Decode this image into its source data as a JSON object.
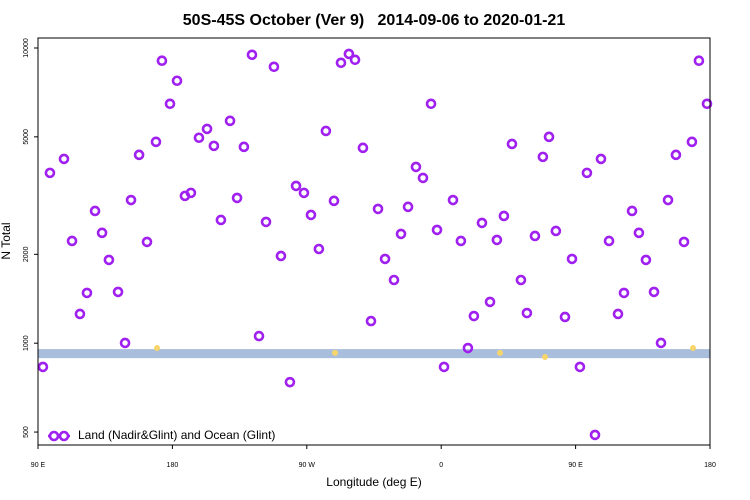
{
  "chart_data": {
    "type": "scatter",
    "title": "50S-45S October (Ver 9)   2014-09-06 to 2020-01-21",
    "x_label": "Longitude (deg E)",
    "y_label": "N Total",
    "log_y": true,
    "legend": "lower left",
    "xlim": [
      90,
      540
    ],
    "xticks": [
      {
        "value": 90,
        "label": "90 E"
      },
      {
        "value": 180,
        "label": "180"
      },
      {
        "value": 270,
        "label": "90 W"
      },
      {
        "value": 360,
        "label": "0"
      },
      {
        "value": 450,
        "label": "90 E"
      },
      {
        "value": 540,
        "label": "180"
      }
    ],
    "ylim": [
      452,
      10810
    ],
    "yticks": [
      500,
      1000,
      2000,
      5000,
      10000
    ],
    "band": [
      890,
      955
    ],
    "band_color": "#a9bedc",
    "highlights": {
      "color": "#f7d56a",
      "x": [
        169.7,
        288.9,
        399.4,
        429.5,
        528.6
      ],
      "values": [
        963,
        927,
        927,
        898,
        963
      ]
    },
    "series": [
      {
        "name": "Land (Nadir&Glint) and Ocean (Glint)",
        "color": "#a020f0",
        "x": [
          93.3,
          98.0,
          107.4,
          112.8,
          118.1,
          122.8,
          128.2,
          132.9,
          137.5,
          143.6,
          148.3,
          152.3,
          157.7,
          163.0,
          169.0,
          173.0,
          178.4,
          183.1,
          188.4,
          192.4,
          197.8,
          203.2,
          207.8,
          212.5,
          218.6,
          223.3,
          227.9,
          233.3,
          238.0,
          242.7,
          248.0,
          252.7,
          258.7,
          262.8,
          268.1,
          272.8,
          278.1,
          282.8,
          288.2,
          292.9,
          298.2,
          302.3,
          307.6,
          313.0,
          317.7,
          322.4,
          328.4,
          333.1,
          337.8,
          343.1,
          347.8,
          353.2,
          357.2,
          361.9,
          367.9,
          373.2,
          377.9,
          381.9,
          387.3,
          392.7,
          397.3,
          402.0,
          407.4,
          413.4,
          417.4,
          422.8,
          428.1,
          432.2,
          436.8,
          442.9,
          447.6,
          452.9,
          457.6,
          463.0,
          467.0,
          472.4,
          478.4,
          482.4,
          487.8,
          492.4,
          497.1,
          502.5,
          507.2,
          511.9,
          517.2,
          522.6,
          527.9,
          532.6,
          538.0
        ],
        "values": [
          831,
          3775,
          4210,
          2220,
          1256,
          1480,
          2805,
          2365,
          1915,
          1492,
          1002,
          3055,
          4345,
          2203,
          4810,
          9055,
          6470,
          7745,
          3155,
          3230,
          4965,
          5320,
          4660,
          2615,
          5665,
          3105,
          4625,
          9485,
          1057,
          2575,
          8635,
          1975,
          738,
          3410,
          3230,
          2720,
          2085,
          5235,
          3035,
          8910,
          9550,
          9120,
          4590,
          1188,
          2850,
          1930,
          1637,
          2345,
          2897,
          3955,
          3630,
          6470,
          2420,
          831,
          3055,
          2220,
          963,
          1236,
          2555,
          1380,
          2238,
          2698,
          4730,
          1637,
          1265,
          2308,
          4277,
          5000,
          2400,
          1227,
          1930,
          831,
          3775,
          489,
          4210,
          2220,
          1256,
          1480,
          2805,
          2365,
          1915,
          1492,
          1002,
          3055,
          4345,
          2203,
          4810,
          9055,
          6470
        ]
      }
    ]
  }
}
